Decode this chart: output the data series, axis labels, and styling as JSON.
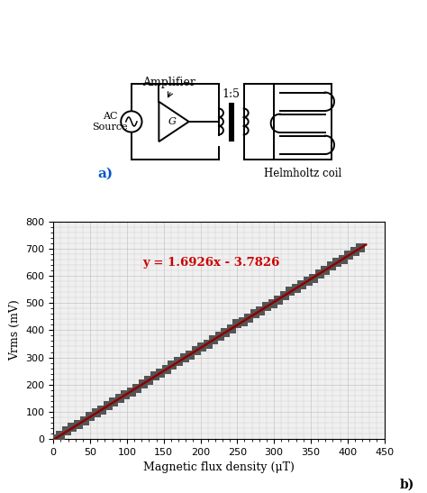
{
  "slope": 1.6926,
  "intercept": -3.7826,
  "equation": "y = 1.6926x - 3.7826",
  "x_min": 0,
  "x_max": 425,
  "y_min": 0,
  "y_max": 800,
  "xlabel": "Magnetic flux density (μT)",
  "ylabel": "Vrms (mV)",
  "xticks": [
    0,
    50,
    100,
    150,
    200,
    250,
    300,
    350,
    400,
    450
  ],
  "yticks": [
    0,
    100,
    200,
    300,
    400,
    500,
    600,
    700,
    800
  ],
  "line_color": "#8B0000",
  "scatter_color": "#555555",
  "eq_color": "#CC0000",
  "eq_x": 215,
  "eq_y": 650,
  "grid_color": "#cccccc",
  "bg_color": "#f0f0f0",
  "label_a": "a)",
  "label_b": "b)",
  "label_a_color": "#0055cc",
  "amplifier_label": "Amplifier",
  "ac_label": "AC\nSource",
  "ratio_label": "1:5",
  "helmholtz_label": "Helmholtz coil",
  "scatter_step": 8,
  "marker_size": 55
}
